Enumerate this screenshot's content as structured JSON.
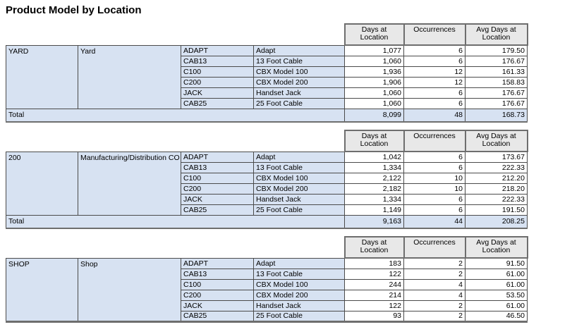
{
  "title": "Product Model by Location",
  "columns": {
    "days": "Days at Location",
    "occurrences": "Occurrences",
    "avg": "Avg Days at Location"
  },
  "total_label": "Total",
  "colors": {
    "row_fill": "#d7e2f2",
    "header_fill": "#e8e8e8",
    "border_thick": "#6e6e6e",
    "border_thin": "#4b4b4b"
  },
  "sections": [
    {
      "code": "YARD",
      "name": "Yard",
      "rows": [
        {
          "code": "ADAPT",
          "desc": "Adapt",
          "days": "1,077",
          "occurrences": "6",
          "avg": "179.50"
        },
        {
          "code": "CAB13",
          "desc": "13 Foot Cable",
          "days": "1,060",
          "occurrences": "6",
          "avg": "176.67"
        },
        {
          "code": "C100",
          "desc": "CBX Model 100",
          "days": "1,936",
          "occurrences": "12",
          "avg": "161.33"
        },
        {
          "code": "C200",
          "desc": "CBX Model 200",
          "days": "1,906",
          "occurrences": "12",
          "avg": "158.83"
        },
        {
          "code": "JACK",
          "desc": "Handset Jack",
          "days": "1,060",
          "occurrences": "6",
          "avg": "176.67"
        },
        {
          "code": "CAB25",
          "desc": "25 Foot Cable",
          "days": "1,060",
          "occurrences": "6",
          "avg": "176.67"
        }
      ],
      "total": {
        "days": "8,099",
        "occurrences": "48",
        "avg": "168.73"
      }
    },
    {
      "code": "200",
      "name": "Manufacturing/Distribution CO",
      "rows": [
        {
          "code": "ADAPT",
          "desc": "Adapt",
          "days": "1,042",
          "occurrences": "6",
          "avg": "173.67"
        },
        {
          "code": "CAB13",
          "desc": "13 Foot Cable",
          "days": "1,334",
          "occurrences": "6",
          "avg": "222.33"
        },
        {
          "code": "C100",
          "desc": "CBX Model 100",
          "days": "2,122",
          "occurrences": "10",
          "avg": "212.20"
        },
        {
          "code": "C200",
          "desc": "CBX Model 200",
          "days": "2,182",
          "occurrences": "10",
          "avg": "218.20"
        },
        {
          "code": "JACK",
          "desc": "Handset Jack",
          "days": "1,334",
          "occurrences": "6",
          "avg": "222.33"
        },
        {
          "code": "CAB25",
          "desc": "25 Foot Cable",
          "days": "1,149",
          "occurrences": "6",
          "avg": "191.50"
        }
      ],
      "total": {
        "days": "9,163",
        "occurrences": "44",
        "avg": "208.25"
      }
    },
    {
      "code": "SHOP",
      "name": "Shop",
      "rows": [
        {
          "code": "ADAPT",
          "desc": "Adapt",
          "days": "183",
          "occurrences": "2",
          "avg": "91.50"
        },
        {
          "code": "CAB13",
          "desc": "13 Foot Cable",
          "days": "122",
          "occurrences": "2",
          "avg": "61.00"
        },
        {
          "code": "C100",
          "desc": "CBX Model 100",
          "days": "244",
          "occurrences": "4",
          "avg": "61.00"
        },
        {
          "code": "C200",
          "desc": "CBX Model 200",
          "days": "214",
          "occurrences": "4",
          "avg": "53.50"
        },
        {
          "code": "JACK",
          "desc": "Handset Jack",
          "days": "122",
          "occurrences": "2",
          "avg": "61.00"
        },
        {
          "code": "CAB25",
          "desc": "25 Foot Cable",
          "days": "93",
          "occurrences": "2",
          "avg": "46.50"
        }
      ]
    }
  ]
}
